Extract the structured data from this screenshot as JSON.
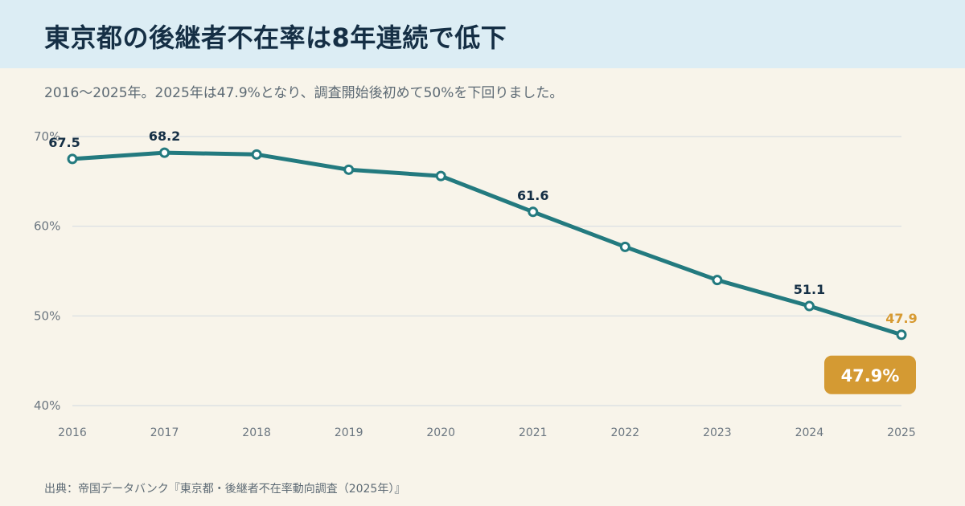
{
  "header": {
    "title": "東京都の後継者不在率は8年連続で低下",
    "subtitle": "2016〜2025年。2025年は47.9%となり、調査開始後初めて50%を下回りました。"
  },
  "source": "出典：帝国データバンク『東京都・後継者不在率動向調査（2025年）』",
  "chart_data": {
    "type": "line",
    "x": [
      "2016",
      "2017",
      "2018",
      "2019",
      "2020",
      "2021",
      "2022",
      "2023",
      "2024",
      "2025"
    ],
    "series": [
      {
        "values": [
          67.5,
          68.2,
          68.0,
          66.3,
          65.6,
          61.6,
          57.7,
          54.0,
          51.1,
          47.9
        ]
      }
    ],
    "ylim": [
      40,
      70
    ],
    "yticks": [
      {
        "value": 40,
        "label": "40%"
      },
      {
        "value": 50,
        "label": "50%"
      },
      {
        "value": 60,
        "label": "60%"
      },
      {
        "value": 70,
        "label": "70%"
      }
    ],
    "data_labels": [
      {
        "year": "2016",
        "label": "67.5"
      },
      {
        "year": "2017",
        "label": "68.2"
      },
      {
        "year": "2021",
        "label": "61.6"
      },
      {
        "year": "2024",
        "label": "51.1"
      },
      {
        "year": "2025",
        "label": "47.9",
        "highlight": true
      }
    ],
    "callout": {
      "year": "2025",
      "label": "47.9%"
    },
    "grid": true,
    "colors": {
      "line": "#237a7f",
      "highlight": "#d49a33"
    }
  }
}
